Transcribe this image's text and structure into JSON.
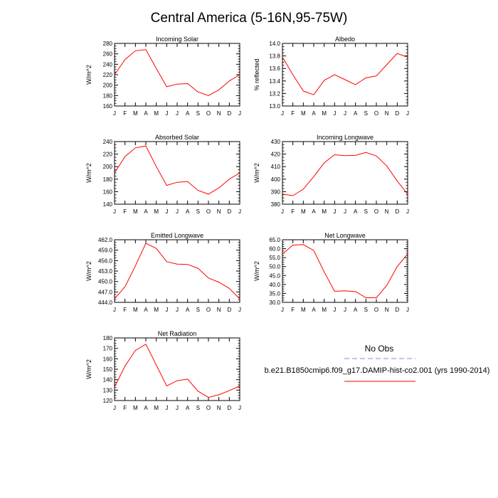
{
  "figure": {
    "title": "Central America (5-16N,95-75W)"
  },
  "legend": {
    "title": "No Obs",
    "model_label": "b.e21.B1850cmip6.f09_g17.DAMIP-hist-co2.001 (yrs 1990-2014)",
    "obs_color": "#8080ff",
    "model_color": "#ff0000"
  },
  "chart_data": [
    {
      "type": "line",
      "title": "Incoming Solar",
      "ylabel": "W/m^2",
      "ylim": [
        160,
        280
      ],
      "yticks": [
        160,
        180,
        200,
        220,
        240,
        260,
        280
      ],
      "ytick_labels": [
        "160",
        "180",
        "200",
        "220",
        "240",
        "260",
        "280"
      ],
      "categories": [
        "J",
        "F",
        "M",
        "A",
        "M",
        "J",
        "J",
        "A",
        "S",
        "O",
        "N",
        "D",
        "J"
      ],
      "series": [
        {
          "values": [
            220,
            249,
            266,
            268,
            232,
            197,
            202,
            203,
            187,
            180,
            191,
            208,
            220
          ],
          "color": "#ff0000"
        }
      ]
    },
    {
      "type": "line",
      "title": "Albedo",
      "ylabel": "% reflected",
      "ylim": [
        13.0,
        14.0
      ],
      "yticks": [
        13.0,
        13.2,
        13.4,
        13.6,
        13.8,
        14.0
      ],
      "ytick_labels": [
        "13.0",
        "13.2",
        "13.4",
        "13.6",
        "13.8",
        "14.0"
      ],
      "categories": [
        "J",
        "F",
        "M",
        "A",
        "M",
        "J",
        "J",
        "A",
        "S",
        "O",
        "N",
        "D",
        "J"
      ],
      "series": [
        {
          "values": [
            13.78,
            13.5,
            13.24,
            13.18,
            13.41,
            13.5,
            13.42,
            13.34,
            13.45,
            13.48,
            13.66,
            13.84,
            13.78
          ],
          "color": "#ff0000"
        }
      ]
    },
    {
      "type": "line",
      "title": "Absorbed Solar",
      "ylabel": "W/m^2",
      "ylim": [
        140,
        240
      ],
      "yticks": [
        140,
        160,
        180,
        200,
        220,
        240
      ],
      "ytick_labels": [
        "140",
        "160",
        "180",
        "200",
        "220",
        "240"
      ],
      "categories": [
        "J",
        "F",
        "M",
        "A",
        "M",
        "J",
        "J",
        "A",
        "S",
        "O",
        "N",
        "D",
        "J"
      ],
      "series": [
        {
          "values": [
            190,
            216,
            230,
            233,
            200,
            170,
            175,
            176,
            162,
            156,
            166,
            180,
            190
          ],
          "color": "#ff0000"
        }
      ]
    },
    {
      "type": "line",
      "title": "Incoming Longwave",
      "ylabel": "W/m^2",
      "ylim": [
        380,
        430
      ],
      "yticks": [
        380,
        390,
        400,
        410,
        420,
        430
      ],
      "ytick_labels": [
        "380",
        "390",
        "400",
        "410",
        "420",
        "430"
      ],
      "categories": [
        "J",
        "F",
        "M",
        "A",
        "M",
        "J",
        "J",
        "A",
        "S",
        "O",
        "N",
        "D",
        "J"
      ],
      "series": [
        {
          "values": [
            388,
            386.8,
            392,
            402,
            413,
            419.5,
            418.8,
            419,
            421.3,
            418.5,
            410.5,
            398.5,
            388
          ],
          "color": "#ff0000"
        }
      ]
    },
    {
      "type": "line",
      "title": "Emitted Longwave",
      "ylabel": "W/m^2",
      "ylim": [
        444,
        462
      ],
      "yticks": [
        444,
        447,
        450,
        453,
        456,
        459,
        462
      ],
      "ytick_labels": [
        "444.0",
        "447.0",
        "450.0",
        "453.0",
        "456.0",
        "459.0",
        "462.0"
      ],
      "categories": [
        "J",
        "F",
        "M",
        "A",
        "M",
        "J",
        "J",
        "A",
        "S",
        "O",
        "N",
        "D",
        "J"
      ],
      "series": [
        {
          "values": [
            445,
            448.5,
            454.5,
            461,
            459.5,
            455.7,
            455,
            454.9,
            453.8,
            451,
            449.8,
            448,
            445
          ],
          "color": "#ff0000"
        }
      ]
    },
    {
      "type": "line",
      "title": "Net Longwave",
      "ylabel": "W/m^2",
      "ylim": [
        30,
        65
      ],
      "yticks": [
        30,
        35,
        40,
        45,
        50,
        55,
        60,
        65
      ],
      "ytick_labels": [
        "30.0",
        "35.0",
        "40.0",
        "45.0",
        "50.0",
        "55.0",
        "60.0",
        "65.0"
      ],
      "categories": [
        "J",
        "F",
        "M",
        "A",
        "M",
        "J",
        "J",
        "A",
        "S",
        "O",
        "N",
        "D",
        "J"
      ],
      "series": [
        {
          "values": [
            57,
            62,
            62.3,
            59,
            47,
            36.2,
            36.4,
            36.1,
            32.6,
            32.6,
            39.5,
            50,
            57
          ],
          "color": "#ff0000"
        }
      ]
    },
    {
      "type": "line",
      "title": "Net Radiation",
      "ylabel": "W/m^2",
      "ylim": [
        120,
        180
      ],
      "yticks": [
        120,
        130,
        140,
        150,
        160,
        170,
        180
      ],
      "ytick_labels": [
        "120",
        "130",
        "140",
        "150",
        "160",
        "170",
        "180"
      ],
      "categories": [
        "J",
        "F",
        "M",
        "A",
        "M",
        "J",
        "J",
        "A",
        "S",
        "O",
        "N",
        "D",
        "J"
      ],
      "series": [
        {
          "values": [
            133,
            153,
            168,
            174,
            154,
            134,
            139,
            140.5,
            129,
            123,
            125.5,
            129.5,
            134
          ],
          "color": "#ff0000"
        }
      ]
    }
  ]
}
